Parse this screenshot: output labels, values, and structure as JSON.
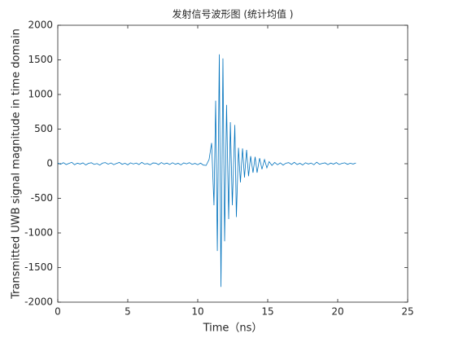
{
  "chart_data": {
    "type": "line",
    "title": "发射信号波形图 (统计均值 )",
    "x_label": "Time（ns）",
    "y_label": "Transmitted UWB signal magnitude in time domain",
    "xlim": [
      0,
      25
    ],
    "xticks": [
      0,
      5,
      10,
      15,
      20,
      25
    ],
    "ylim": [
      -2000,
      2000
    ],
    "yticks": [
      -2000,
      -1500,
      -1000,
      -500,
      0,
      500,
      1000,
      1500,
      2000
    ],
    "grid": false,
    "series": [
      {
        "color": "#0072bd",
        "x": [
          0,
          0.2,
          0.4,
          0.6,
          0.8,
          1,
          1.2,
          1.4,
          1.6,
          1.8,
          2,
          2.2,
          2.4,
          2.6,
          2.8,
          3,
          3.2,
          3.4,
          3.6,
          3.8,
          4,
          4.2,
          4.4,
          4.6,
          4.8,
          5,
          5.2,
          5.4,
          5.6,
          5.8,
          6,
          6.2,
          6.4,
          6.6,
          6.8,
          7,
          7.2,
          7.4,
          7.6,
          7.8,
          8,
          8.2,
          8.4,
          8.6,
          8.8,
          9,
          9.2,
          9.4,
          9.6,
          9.8,
          10,
          10.2,
          10.4,
          10.6,
          10.81,
          10.99,
          11.16,
          11.28,
          11.4,
          11.54,
          11.66,
          11.8,
          11.92,
          12.06,
          12.21,
          12.33,
          12.47,
          12.65,
          12.76,
          12.91,
          13.05,
          13.2,
          13.34,
          13.49,
          13.63,
          13.78,
          13.95,
          14.1,
          14.24,
          14.42,
          14.59,
          14.77,
          14.94,
          15.1,
          15.3,
          15.5,
          15.7,
          15.9,
          16.1,
          16.3,
          16.5,
          16.7,
          16.9,
          17.1,
          17.3,
          17.5,
          17.7,
          17.9,
          18.1,
          18.3,
          18.5,
          18.7,
          18.9,
          19.1,
          19.3,
          19.5,
          19.7,
          19.9,
          20.1,
          20.3,
          20.5,
          20.7,
          20.9,
          21.1,
          21.3
        ],
        "values": [
          10,
          -8,
          15,
          -12,
          5,
          20,
          -15,
          8,
          -5,
          12,
          -18,
          6,
          14,
          -10,
          3,
          -20,
          9,
          16,
          -7,
          11,
          -14,
          4,
          18,
          -9,
          7,
          -16,
          13,
          -4,
          10,
          -12,
          19,
          -6,
          2,
          -15,
          11,
          8,
          -13,
          17,
          -5,
          9,
          -11,
          14,
          -8,
          6,
          -17,
          12,
          -3,
          15,
          -10,
          5,
          -14,
          9,
          -20,
          -25,
          60,
          300,
          -600,
          910,
          -1260,
          1580,
          -1780,
          1520,
          -1120,
          850,
          -800,
          600,
          -600,
          560,
          -770,
          230,
          -270,
          220,
          -200,
          200,
          -180,
          110,
          -130,
          100,
          -130,
          80,
          -80,
          60,
          -60,
          30,
          -25,
          18,
          -15,
          12,
          -20,
          8,
          15,
          -10,
          20,
          -12,
          6,
          -18,
          14,
          -5,
          10,
          -15,
          22,
          -8,
          5,
          12,
          -14,
          9,
          -6,
          16,
          -11,
          4,
          13,
          -9,
          7,
          -5,
          10
        ]
      }
    ]
  }
}
